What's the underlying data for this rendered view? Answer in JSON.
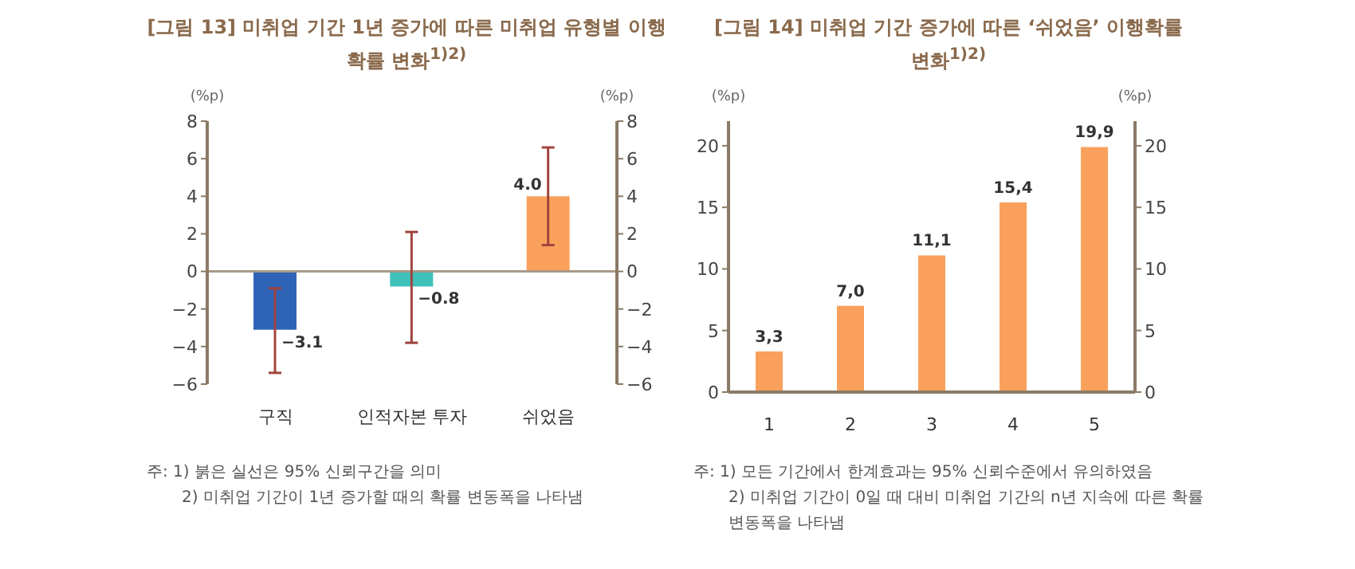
{
  "chart_data": [
    {
      "type": "bar",
      "title": "[그림 13] 미취업 기간 1년 증가에 따른 미취업 유형별 이행확률 변화$^{1)2)}$",
      "ylabel": "(%p)",
      "y2label": "(%p)",
      "categories": [
        "구직",
        "인적자본 투자",
        "쉬었음"
      ],
      "values": [
        -3.1,
        -0.8,
        4.0
      ],
      "colors": [
        "#2f63b6",
        "#3ec0bb",
        "#f9a15c"
      ],
      "errors": [
        [
          -5.4,
          -0.9
        ],
        [
          -3.8,
          2.1
        ],
        [
          1.4,
          6.6
        ]
      ],
      "value_labels": [
        "−3.1",
        "−0.8",
        "4.0"
      ],
      "ylim": [
        -6,
        8
      ],
      "yticks": [
        {
          "value": -6,
          "label": "−6"
        },
        {
          "value": -4,
          "label": "−4"
        },
        {
          "value": -2,
          "label": "−2"
        },
        0,
        2,
        4,
        6,
        8
      ],
      "y2lim": [
        -6,
        8
      ],
      "y2ticks": [
        {
          "value": -6,
          "label": "−6"
        },
        {
          "value": -4,
          "label": "−4"
        },
        {
          "value": -2,
          "label": "−2"
        },
        0,
        2,
        4,
        6,
        8
      ],
      "annotations": [
        "주: 1) 붉은 실선은 95% 신뢰구간을 의미",
        "2) 미취업 기간이 1년 증가할 때의 확률 변동폭을 나타냄"
      ]
    },
    {
      "type": "bar",
      "title": "[그림 14] 미취업 기간 증가에 따른 ‘쉬었음’ 이행확률 변화$^{1)2)}$",
      "ylabel": "(%p)",
      "y2label": "(%p)",
      "categories": [
        "1",
        "2",
        "3",
        "4",
        "5"
      ],
      "values": [
        3.3,
        7.0,
        11.1,
        15.4,
        19.9
      ],
      "color": "#f9a15c",
      "value_labels": [
        "3,3",
        "7,0",
        "11,1",
        "15,4",
        "19,9"
      ],
      "ylim": [
        0,
        22
      ],
      "yticks": [
        0,
        5,
        10,
        15,
        20
      ],
      "y2lim": [
        0,
        22
      ],
      "y2ticks": [
        0,
        5,
        10,
        15,
        20
      ],
      "annotations": [
        "주: 1) 모든 기간에서 한계효과는 95% 신뢰수준에서 유의하였음",
        "2) 미취업 기간이 0일 때 대비 미취업 기간의 n년 지속에 따른 확률 변동폭을 나타냄"
      ]
    }
  ]
}
